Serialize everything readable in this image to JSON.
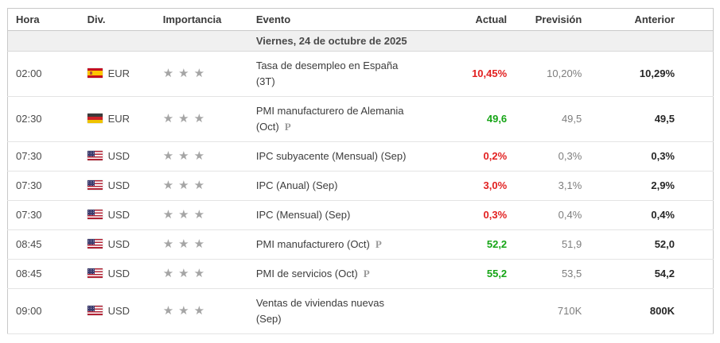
{
  "table": {
    "columns": [
      "Hora",
      "Div.",
      "Importancia",
      "Evento",
      "Actual",
      "Previsión",
      "Anterior"
    ],
    "date_header": "Viernes, 24 de octubre de 2025",
    "preliminary_marker": "P",
    "star_glyph": "★",
    "rows": [
      {
        "time": "02:00",
        "flag": "spain",
        "currency": "EUR",
        "importance": 3,
        "event_lines": [
          "Tasa de desempleo en España",
          "(3T)"
        ],
        "preliminary": false,
        "actual": "10,45%",
        "actual_state": "worse",
        "forecast": "10,20%",
        "previous": "10,29%"
      },
      {
        "time": "02:30",
        "flag": "germany",
        "currency": "EUR",
        "importance": 3,
        "event_lines": [
          "PMI manufacturero de Alemania",
          "(Oct)"
        ],
        "preliminary": true,
        "actual": "49,6",
        "actual_state": "better",
        "forecast": "49,5",
        "previous": "49,5"
      },
      {
        "time": "07:30",
        "flag": "usa",
        "currency": "USD",
        "importance": 3,
        "event_lines": [
          "IPC subyacente (Mensual) (Sep)"
        ],
        "preliminary": false,
        "actual": "0,2%",
        "actual_state": "worse",
        "forecast": "0,3%",
        "previous": "0,3%"
      },
      {
        "time": "07:30",
        "flag": "usa",
        "currency": "USD",
        "importance": 3,
        "event_lines": [
          "IPC (Anual) (Sep)"
        ],
        "preliminary": false,
        "actual": "3,0%",
        "actual_state": "worse",
        "forecast": "3,1%",
        "previous": "2,9%"
      },
      {
        "time": "07:30",
        "flag": "usa",
        "currency": "USD",
        "importance": 3,
        "event_lines": [
          "IPC (Mensual) (Sep)"
        ],
        "preliminary": false,
        "actual": "0,3%",
        "actual_state": "worse",
        "forecast": "0,4%",
        "previous": "0,4%"
      },
      {
        "time": "08:45",
        "flag": "usa",
        "currency": "USD",
        "importance": 3,
        "event_lines": [
          "PMI manufacturero (Oct)"
        ],
        "preliminary": true,
        "actual": "52,2",
        "actual_state": "better",
        "forecast": "51,9",
        "previous": "52,0"
      },
      {
        "time": "08:45",
        "flag": "usa",
        "currency": "USD",
        "importance": 3,
        "event_lines": [
          "PMI de servicios (Oct)"
        ],
        "preliminary": true,
        "actual": "55,2",
        "actual_state": "better",
        "forecast": "53,5",
        "previous": "54,2"
      },
      {
        "time": "09:00",
        "flag": "usa",
        "currency": "USD",
        "importance": 3,
        "event_lines": [
          "Ventas de viviendas nuevas",
          "(Sep)"
        ],
        "preliminary": false,
        "actual": "",
        "actual_state": "none",
        "forecast": "710K",
        "previous": "800K"
      }
    ]
  },
  "colors": {
    "better": "#16a516",
    "worse": "#e22121"
  }
}
